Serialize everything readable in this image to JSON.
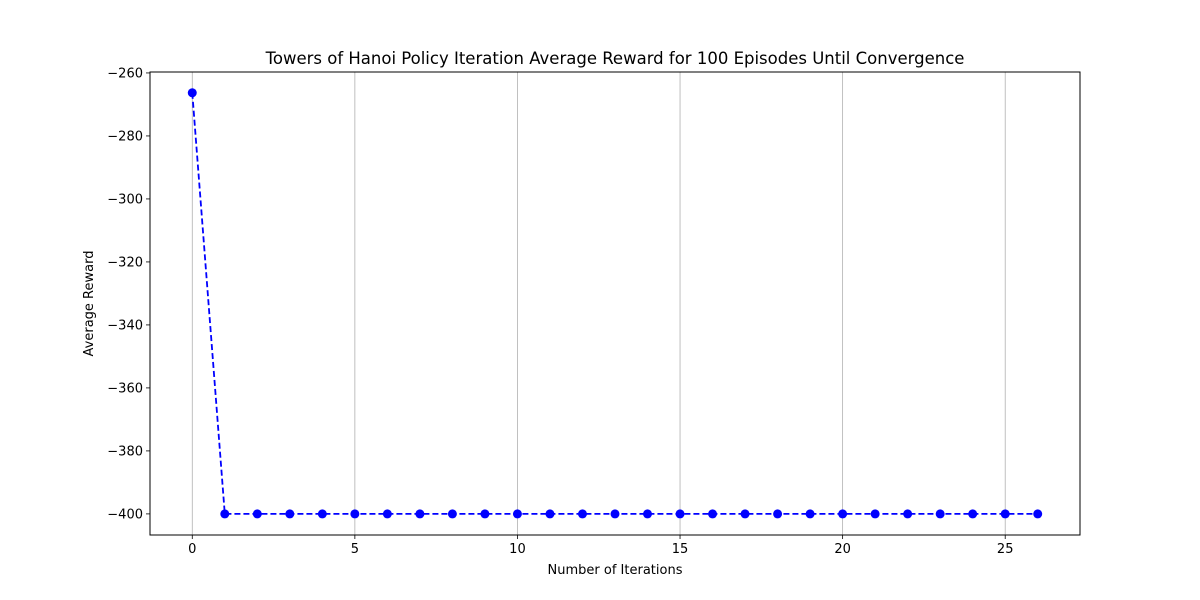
{
  "chart_data": {
    "type": "line",
    "title": "Towers of Hanoi Policy Iteration Average Reward for 100 Episodes Until Convergence",
    "xlabel": "Number of Iterations",
    "ylabel": "Average Reward",
    "xlim": [
      -1.3,
      27.3
    ],
    "ylim": [
      -406.7,
      -259.7
    ],
    "xticks": [
      0,
      5,
      10,
      15,
      20,
      25
    ],
    "xtick_labels": [
      "0",
      "5",
      "10",
      "15",
      "20",
      "25"
    ],
    "yticks": [
      -260,
      -280,
      -300,
      -320,
      -340,
      -360,
      -380,
      -400
    ],
    "ytick_labels": [
      "−260",
      "−280",
      "−300",
      "−320",
      "−340",
      "−360",
      "−380",
      "−400"
    ],
    "grid": "vertical",
    "series": [
      {
        "color": "#0000ff",
        "line_style": "dashed",
        "marker": "circle",
        "x": [
          0,
          1,
          2,
          3,
          4,
          5,
          6,
          7,
          8,
          9,
          10,
          11,
          12,
          13,
          14,
          15,
          16,
          17,
          18,
          19,
          20,
          21,
          22,
          23,
          24,
          25,
          26
        ],
        "values": [
          -266.3,
          -400,
          -400,
          -400,
          -400,
          -400,
          -400,
          -400,
          -400,
          -400,
          -400,
          -400,
          -400,
          -400,
          -400,
          -400,
          -400,
          -400,
          -400,
          -400,
          -400,
          -400,
          -400,
          -400,
          -400,
          -400,
          -400
        ]
      }
    ]
  }
}
